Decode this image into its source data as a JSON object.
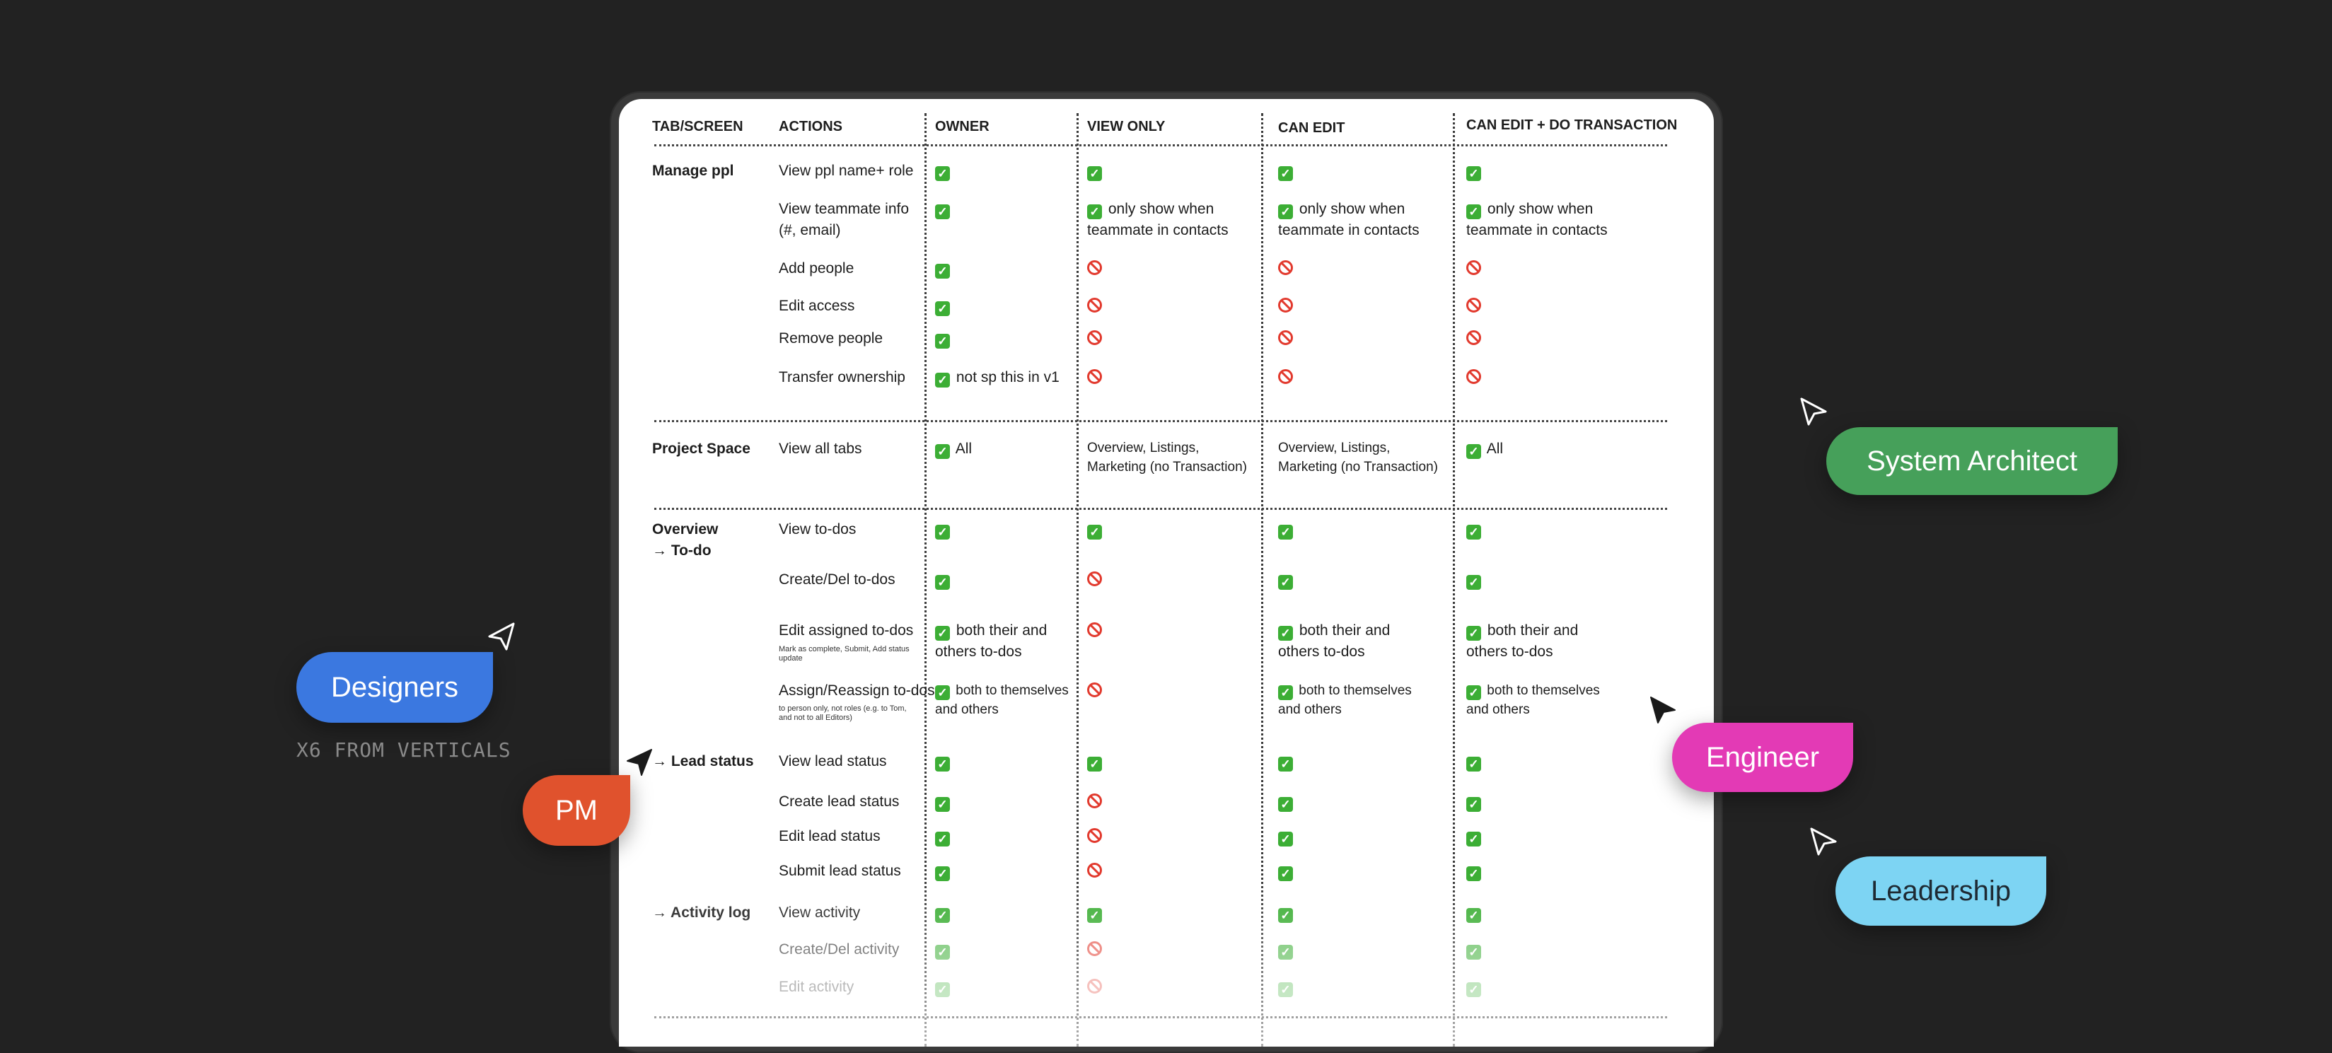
{
  "headers": [
    "TAB/SCREEN",
    "ACTIONS",
    "OWNER",
    "VIEW ONLY",
    "CAN EDIT",
    "CAN EDIT + DO TRANSACTION"
  ],
  "sections": {
    "manage": "Manage ppl",
    "project": "Project Space",
    "overview_line1": "Overview",
    "overview_line2": "→ To-do",
    "lead": "→ Lead status",
    "activity": "→ Activity log"
  },
  "actions": {
    "view_ppl": "View ppl name+ role",
    "view_team_1": "View teammate info",
    "view_team_2": "(#, email)",
    "add_people": "Add people",
    "edit_access": "Edit access",
    "remove_people": "Remove people",
    "transfer": "Transfer ownership",
    "view_tabs": "View all tabs",
    "view_todos": "View to-dos",
    "create_todos": "Create/Del to-dos",
    "edit_assigned": "Edit assigned to-dos",
    "edit_assigned_note": "Mark as complete, Submit, Add status update",
    "assign": "Assign/Reassign to-dos",
    "assign_note": "to person only, not roles (e.g. to Tom, and not to all Editors)",
    "view_lead": "View lead status",
    "create_lead": "Create lead status",
    "edit_lead": "Edit lead status",
    "submit_lead": "Submit lead status",
    "view_activity": "View activity",
    "create_activity": "Create/Del activity",
    "edit_activity": "Edit activity"
  },
  "notes": {
    "only_show_1": "only show when",
    "only_show_2": "teammate in contacts",
    "not_v1": "not sp this in v1",
    "all": "All",
    "tabs_1": "Overview, Listings,",
    "tabs_2": "Marketing (no Transaction)",
    "both_1": "both their and",
    "both_2": "others to-dos",
    "both_self_1": "both to themselves",
    "both_self_2": "and others"
  },
  "labels": {
    "system_architect": "System Architect",
    "designers": "Designers",
    "subtitle": "X6 FROM VERTICALS",
    "pm": "PM",
    "engineer": "Engineer",
    "leadership": "Leadership"
  },
  "colors": {
    "system_architect": "#46a05a",
    "designers": "#3b78e0",
    "pm": "#e0522d",
    "engineer": "#e33ab5",
    "leadership": "#7dd4f3"
  }
}
